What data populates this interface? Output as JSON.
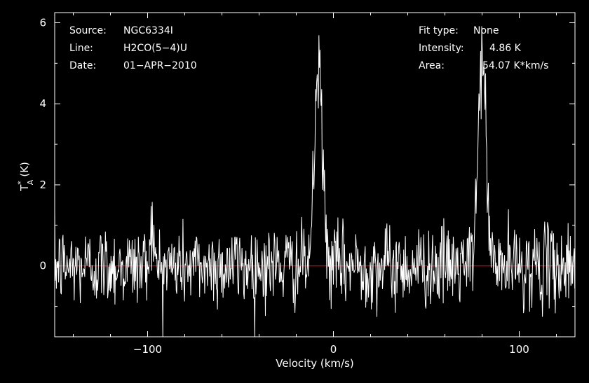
{
  "header_left": {
    "source_label": "Source:",
    "source_value": "NGC6334I",
    "line_label": "Line:",
    "line_value": "H2CO(5−4)U",
    "date_label": "Date:",
    "date_value": "01−APR−2010"
  },
  "header_right": {
    "fit_label": "Fit type:",
    "fit_value": "None",
    "intensity_label": "Intensity:",
    "intensity_value": "4.86 K",
    "area_label": "Area:",
    "area_value": "54.07 K*km/s"
  },
  "chart_data": {
    "type": "line",
    "xlabel": "Velocity (km/s)",
    "ylabel": "T",
    "ylabel_sup": "*",
    "ylabel_sub": "A",
    "ylabel_unit": "(K)",
    "xlim": [
      -150,
      130
    ],
    "ylim": [
      -1.75,
      6.25
    ],
    "x_ticks": [
      -100,
      0,
      100
    ],
    "x_tick_labels": [
      "−100",
      "0",
      "100"
    ],
    "y_ticks": [
      0,
      2,
      4,
      6
    ],
    "y_tick_labels": [
      "0",
      "2",
      "4",
      "6"
    ],
    "noise_rms": 0.5,
    "channel_width_kms": 0.3,
    "series": [
      {
        "color": "#ffffff",
        "features": [
          {
            "center": -98,
            "peak": 1.2,
            "fwhm": 2.0
          },
          {
            "center": -8,
            "peak": 4.86,
            "fwhm": 5.0
          },
          {
            "center": 80,
            "peak": 5.2,
            "fwhm": 5.0
          }
        ]
      }
    ],
    "baseline": {
      "y": 0,
      "color": "#ff0000"
    },
    "grid": false,
    "legend": "none"
  }
}
